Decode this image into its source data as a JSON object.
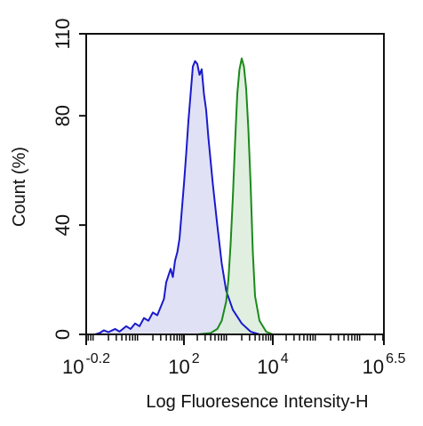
{
  "chart_data": {
    "type": "area",
    "xlabel": "Log Fluoresence Intensity-H",
    "ylabel": "Count  (%)",
    "x_scale": "log10",
    "xlim_log": [
      -0.2,
      6.5
    ],
    "ylim": [
      0,
      110
    ],
    "yticks": [
      0,
      40,
      80,
      110
    ],
    "xticks": [
      {
        "base": "10",
        "exp": "-0.2",
        "log": -0.2
      },
      {
        "base": "10",
        "exp": "2",
        "log": 2
      },
      {
        "base": "10",
        "exp": "4",
        "log": 4
      },
      {
        "base": "10",
        "exp": "6.5",
        "log": 6.5
      }
    ],
    "grid": false,
    "legend": "none",
    "series": [
      {
        "color": "#1a1acc",
        "fill": "#dcdcf4",
        "points_log": [
          [
            0.0,
            0
          ],
          [
            0.1,
            0.5
          ],
          [
            0.2,
            1.5
          ],
          [
            0.3,
            0.8
          ],
          [
            0.45,
            2
          ],
          [
            0.55,
            1
          ],
          [
            0.7,
            3
          ],
          [
            0.8,
            2
          ],
          [
            0.9,
            4
          ],
          [
            1.0,
            3
          ],
          [
            1.1,
            6
          ],
          [
            1.2,
            5
          ],
          [
            1.3,
            8
          ],
          [
            1.4,
            7
          ],
          [
            1.5,
            11
          ],
          [
            1.55,
            13
          ],
          [
            1.6,
            19
          ],
          [
            1.7,
            24
          ],
          [
            1.75,
            21
          ],
          [
            1.8,
            27
          ],
          [
            1.85,
            30
          ],
          [
            1.9,
            35
          ],
          [
            2.0,
            55
          ],
          [
            2.05,
            66
          ],
          [
            2.1,
            78
          ],
          [
            2.15,
            88
          ],
          [
            2.2,
            98
          ],
          [
            2.25,
            100
          ],
          [
            2.3,
            99
          ],
          [
            2.35,
            95
          ],
          [
            2.4,
            97
          ],
          [
            2.45,
            88
          ],
          [
            2.5,
            82
          ],
          [
            2.55,
            72
          ],
          [
            2.65,
            55
          ],
          [
            2.75,
            40
          ],
          [
            2.85,
            26
          ],
          [
            2.95,
            16
          ],
          [
            3.1,
            9
          ],
          [
            3.3,
            4
          ],
          [
            3.5,
            1
          ],
          [
            3.7,
            0
          ]
        ]
      },
      {
        "color": "#1a8a1a",
        "fill": "#dcecdc",
        "points_log": [
          [
            2.3,
            0
          ],
          [
            2.6,
            0.5
          ],
          [
            2.75,
            2
          ],
          [
            2.85,
            5
          ],
          [
            2.95,
            12
          ],
          [
            3.0,
            20
          ],
          [
            3.05,
            33
          ],
          [
            3.1,
            50
          ],
          [
            3.15,
            70
          ],
          [
            3.2,
            88
          ],
          [
            3.25,
            97
          ],
          [
            3.3,
            101
          ],
          [
            3.35,
            98
          ],
          [
            3.4,
            90
          ],
          [
            3.45,
            75
          ],
          [
            3.5,
            55
          ],
          [
            3.55,
            30
          ],
          [
            3.6,
            14
          ],
          [
            3.7,
            5
          ],
          [
            3.85,
            1
          ],
          [
            4.0,
            0
          ]
        ]
      }
    ]
  }
}
